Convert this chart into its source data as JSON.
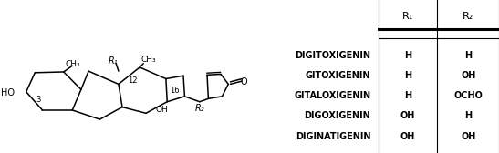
{
  "table_rows": [
    [
      "DIGITOXIGENIN",
      "H",
      "H"
    ],
    [
      "GITOXIGENIN",
      "H",
      "OH"
    ],
    [
      "GITALOXIGENIN",
      "H",
      "OCHO"
    ],
    [
      "DIGOXIGENIN",
      "OH",
      "H"
    ],
    [
      "DIGINATIGENIN",
      "OH",
      "OH"
    ]
  ],
  "col_headers": [
    "",
    "R₁",
    "R₂"
  ],
  "bg_color": "#ffffff",
  "text_color": "#000000",
  "font_size": 7.0,
  "header_font_size": 8.0
}
